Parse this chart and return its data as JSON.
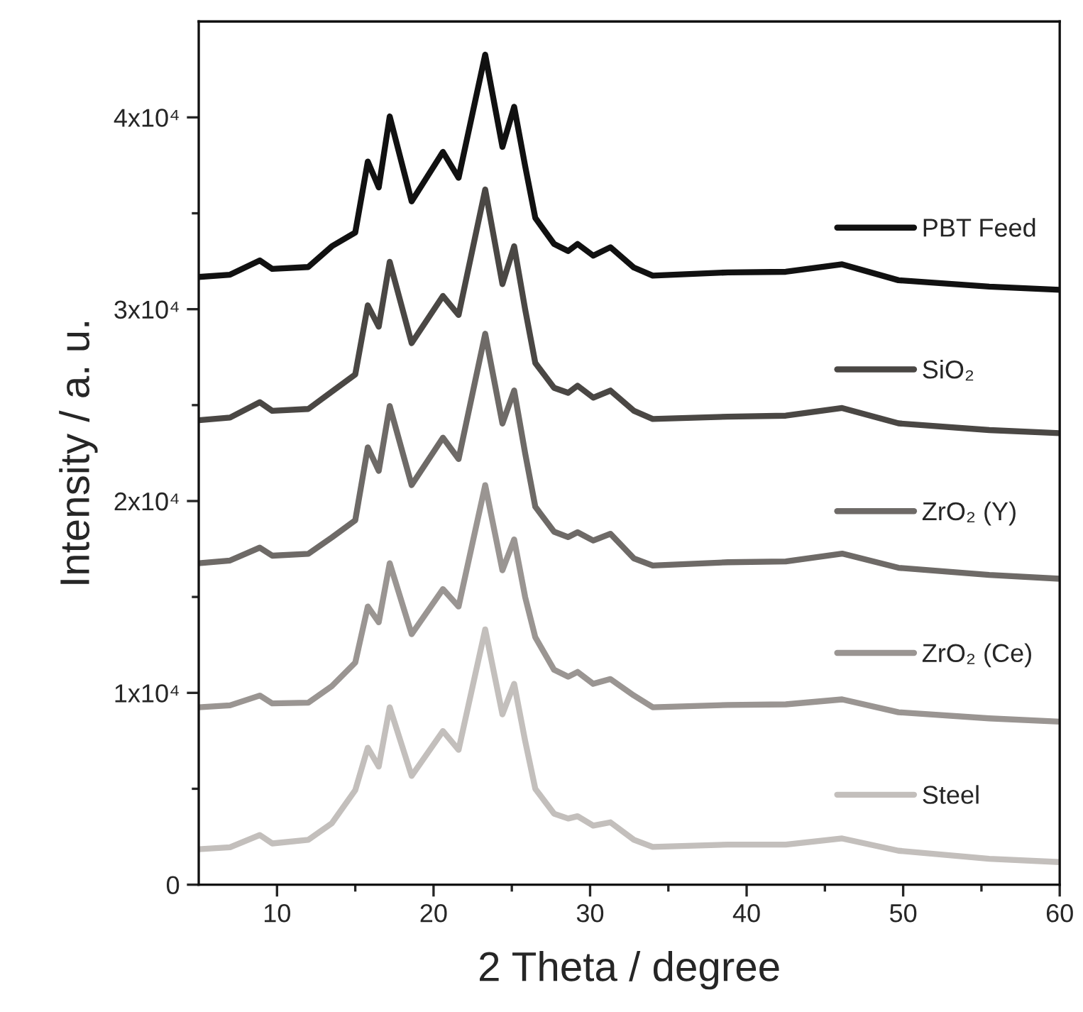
{
  "chart_data": {
    "type": "line",
    "xlabel": "2 Theta / degree",
    "ylabel": "Intensity / a. u.",
    "x": [
      5,
      7,
      8.9,
      9.7,
      12,
      13.5,
      15,
      15.8,
      16.5,
      17.2,
      18.6,
      20.6,
      21.6,
      23.3,
      24.4,
      25.15,
      25.85,
      26.5,
      27.7,
      28.6,
      29.2,
      30.2,
      31.3,
      32.8,
      34,
      38.8,
      42.5,
      46.1,
      49.7,
      55.5,
      60
    ],
    "series": [
      {
        "name": "PBT Feed",
        "color": "#111111",
        "values": [
          31680,
          31800,
          32540,
          32100,
          32200,
          33280,
          34000,
          37700,
          36350,
          40050,
          35620,
          38200,
          36850,
          43270,
          38460,
          40550,
          37470,
          34760,
          33400,
          33030,
          33400,
          32790,
          33230,
          32170,
          31750,
          31920,
          31950,
          32340,
          31510,
          31180,
          31010
        ]
      },
      {
        "name": "SiO₂",
        "color": "#4a4744",
        "values": [
          24210,
          24350,
          25150,
          24700,
          24800,
          25700,
          26600,
          30200,
          29090,
          32470,
          28230,
          30690,
          29700,
          36240,
          31310,
          33280,
          30000,
          27200,
          25900,
          25640,
          26010,
          25390,
          25760,
          24700,
          24280,
          24400,
          24450,
          24850,
          24050,
          23700,
          23540
        ]
      },
      {
        "name": "ZrO₂ (Y)",
        "color": "#6e6a67",
        "values": [
          16760,
          16900,
          17570,
          17150,
          17250,
          18100,
          19000,
          22800,
          21570,
          24950,
          20830,
          23300,
          22190,
          28720,
          24040,
          25760,
          22500,
          19700,
          18400,
          18120,
          18370,
          17940,
          18290,
          17010,
          16640,
          16810,
          16850,
          17260,
          16520,
          16150,
          15950
        ]
      },
      {
        "name": "ZrO₂ (Ce)",
        "color": "#9a9592",
        "values": [
          9250,
          9350,
          9860,
          9450,
          9490,
          10350,
          11580,
          14500,
          13680,
          16760,
          13060,
          15410,
          14500,
          20830,
          16390,
          18000,
          15000,
          12900,
          11200,
          10840,
          11090,
          10470,
          10720,
          9860,
          9250,
          9370,
          9400,
          9660,
          8990,
          8670,
          8500
        ]
      },
      {
        "name": "Steel",
        "color": "#c3bfbc",
        "values": [
          1850,
          1950,
          2590,
          2150,
          2340,
          3200,
          4930,
          7140,
          6160,
          9250,
          5670,
          8010,
          7030,
          13310,
          8880,
          10470,
          7500,
          5000,
          3700,
          3450,
          3570,
          3080,
          3250,
          2340,
          1970,
          2090,
          2090,
          2410,
          1770,
          1350,
          1180
        ]
      }
    ],
    "xlim": [
      5,
      60
    ],
    "xticks": [
      10,
      {
        "value": 15,
        "label": null
      },
      20,
      {
        "value": 25,
        "label": null
      },
      30,
      {
        "value": 35,
        "label": null
      },
      40,
      {
        "value": 45,
        "label": null
      },
      50,
      {
        "value": 55,
        "label": null
      },
      60
    ],
    "ylim": [
      0,
      45000
    ],
    "yticks": [
      0,
      {
        "value": 5000,
        "label": null
      },
      {
        "value": 10000,
        "label": "1x10⁴"
      },
      {
        "value": 15000,
        "label": null
      },
      {
        "value": 20000,
        "label": "2x10⁴"
      },
      {
        "value": 25000,
        "label": null
      },
      {
        "value": 30000,
        "label": "3x10⁴"
      },
      {
        "value": 35000,
        "label": null
      },
      {
        "value": 40000,
        "label": "4x10⁴"
      }
    ],
    "grid": false,
    "legend": "right",
    "marker": "none",
    "line_style": "solid"
  }
}
